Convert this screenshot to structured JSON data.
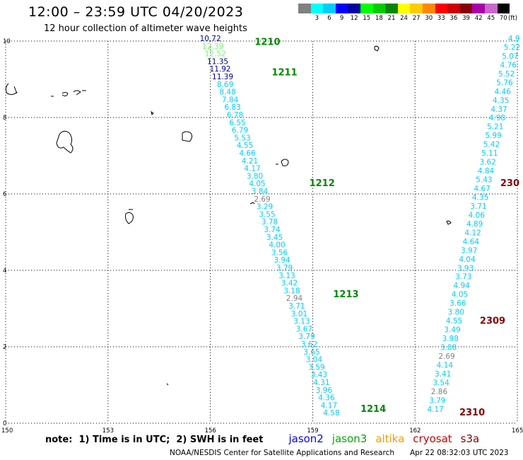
{
  "header": {
    "title": "12:00 – 23:59 UTC 04/20/2023",
    "subtitle": "12 hour collection of altimeter wave heights"
  },
  "legend": {
    "unit": "(ft)",
    "swatches": [
      {
        "label": "",
        "color": "#808080"
      },
      {
        "label": "3",
        "color": "#00ffff"
      },
      {
        "label": "6",
        "color": "#00ccff"
      },
      {
        "label": "9",
        "color": "#0000ff"
      },
      {
        "label": "12",
        "color": "#0000a0"
      },
      {
        "label": "15",
        "color": "#00ff00"
      },
      {
        "label": "18",
        "color": "#00cc00"
      },
      {
        "label": "21",
        "color": "#008800"
      },
      {
        "label": "24",
        "color": "#ffff00"
      },
      {
        "label": "27",
        "color": "#ffcc00"
      },
      {
        "label": "30",
        "color": "#ff8800"
      },
      {
        "label": "33",
        "color": "#ff0000"
      },
      {
        "label": "36",
        "color": "#cc0000"
      },
      {
        "label": "39",
        "color": "#880000"
      },
      {
        "label": "42",
        "color": "#aa00aa"
      },
      {
        "label": "45",
        "color": "#cc66cc"
      },
      {
        "label": "70",
        "color": "#000000"
      }
    ]
  },
  "axes": {
    "x_ticks": [
      "150",
      "153",
      "156",
      "159",
      "162",
      "165"
    ],
    "y_ticks": [
      "0",
      "2",
      "4",
      "6",
      "8",
      "10"
    ],
    "xlim": [
      150,
      165
    ],
    "ylim": [
      0,
      10
    ]
  },
  "passes": [
    {
      "label": "1210",
      "lon": 157.3,
      "lat": 9.9,
      "color": "#008800"
    },
    {
      "label": "1211",
      "lon": 157.8,
      "lat": 9.1,
      "color": "#008800"
    },
    {
      "label": "1212",
      "lon": 158.9,
      "lat": 6.2,
      "color": "#008800"
    },
    {
      "label": "1213",
      "lon": 159.6,
      "lat": 3.3,
      "color": "#008800"
    },
    {
      "label": "1214",
      "lon": 160.4,
      "lat": 0.3,
      "color": "#008800"
    },
    {
      "label": "2309",
      "lon": 163.9,
      "lat": 2.6,
      "color": "#880000"
    },
    {
      "label": "2310",
      "lon": 163.3,
      "lat": 0.2,
      "color": "#880000"
    },
    {
      "label": "230",
      "lon": 164.5,
      "lat": 6.2,
      "color": "#880000"
    }
  ],
  "tracks": [
    {
      "name": "track-west",
      "start": [
        156.0,
        10.0
      ],
      "end": [
        159.55,
        0.2
      ],
      "values": [
        "10.72",
        "12.39",
        "12.52",
        "11.35",
        "11.92",
        "11.39",
        "8.69",
        "8.48",
        "7.84",
        "6.83",
        "6.78",
        "6.55",
        "6.79",
        "5.53",
        "4.55",
        "4.66",
        "4.21",
        "4.17",
        "3.80",
        "4.05",
        "3.84",
        "2.69",
        "3.29",
        "3.55",
        "3.78",
        "3.74",
        "3.45",
        "4.00",
        "3.56",
        "3.94",
        "3.79",
        "3.13",
        "3.42",
        "3.18",
        "2.94",
        "3.71",
        "3.01",
        "3.13",
        "3.67",
        "3.79",
        "3.62",
        "3.65",
        "3.04",
        "3.59",
        "3.43",
        "4.31",
        "3.96",
        "4.36",
        "4.17",
        "4.58"
      ],
      "colors": [
        "#0000a0",
        "#66ff66",
        "#66ff66",
        "#0000a0",
        "#0000a0",
        "#0000a0",
        "#00ccff",
        "#00ccff",
        "#00ccff",
        "#00ccff",
        "#00ccff",
        "#00ccff",
        "#00ccff",
        "#00ccff",
        "#00ccff",
        "#00ccff",
        "#00ccff",
        "#00ccff",
        "#00ccff",
        "#00ccff",
        "#00ccff",
        "#808080",
        "#00ccff",
        "#00ccff",
        "#00ccff",
        "#00ccff",
        "#00ccff",
        "#00ccff",
        "#00ccff",
        "#00ccff",
        "#00ccff",
        "#00ccff",
        "#00ccff",
        "#00ccff",
        "#808080",
        "#00ccff",
        "#00ccff",
        "#00ccff",
        "#00ccff",
        "#00ccff",
        "#00ccff",
        "#00ccff",
        "#00ccff",
        "#00ccff",
        "#00ccff",
        "#00ccff",
        "#00ccff",
        "#00ccff",
        "#00ccff",
        "#00ccff"
      ]
    },
    {
      "name": "track-east",
      "start": [
        164.9,
        10.0
      ],
      "end": [
        162.6,
        0.3
      ],
      "values": [
        "4.9",
        "5.22",
        "5.07",
        "4.76",
        "5.52",
        "5.76",
        "4.46",
        "4.35",
        "4.37",
        "4.98",
        "5.21",
        "5.99",
        "5.42",
        "5.11",
        "3.62",
        "4.84",
        "5.43",
        "4.67",
        "4.35",
        "3.71",
        "4.06",
        "4.89",
        "4.12",
        "4.64",
        "3.97",
        "4.04",
        "3.93",
        "3.73",
        "4.94",
        "4.05",
        "3.66",
        "3.80",
        "4.55",
        "3.49",
        "3.98",
        "3.88",
        "2.69",
        "4.14",
        "3.41",
        "3.54",
        "2.86",
        "3.79",
        "4.17"
      ],
      "colors": [
        "#00ccff",
        "#00ccff",
        "#00ccff",
        "#00ccff",
        "#00ccff",
        "#00ccff",
        "#00ccff",
        "#00ccff",
        "#00ccff",
        "#00ccff",
        "#00ccff",
        "#00ccff",
        "#00ccff",
        "#00ccff",
        "#00ccff",
        "#00ccff",
        "#00ccff",
        "#00ccff",
        "#00ccff",
        "#00ccff",
        "#00ccff",
        "#00ccff",
        "#00ccff",
        "#00ccff",
        "#00ccff",
        "#00ccff",
        "#00ccff",
        "#00ccff",
        "#00ccff",
        "#00ccff",
        "#00ccff",
        "#00ccff",
        "#00ccff",
        "#00ccff",
        "#00ccff",
        "#00ccff",
        "#808080",
        "#00ccff",
        "#00ccff",
        "#00ccff",
        "#808080",
        "#00ccff",
        "#00ccff"
      ]
    }
  ],
  "footer": {
    "note": "note:  1) Time is in UTC;  2) SWH is in feet",
    "satellites": [
      {
        "label": "jason2",
        "color": "#0000ff"
      },
      {
        "label": "jason3",
        "color": "#00aa00"
      },
      {
        "label": "altika",
        "color": "#ff9900"
      },
      {
        "label": "cryosat",
        "color": "#cc0000"
      },
      {
        "label": "s3a",
        "color": "#880000"
      }
    ],
    "credit": "NOAA/NESDIS Center for Satellite Applications and Research",
    "timestamp": "Apr 22 08:32:03 UTC 2023"
  }
}
